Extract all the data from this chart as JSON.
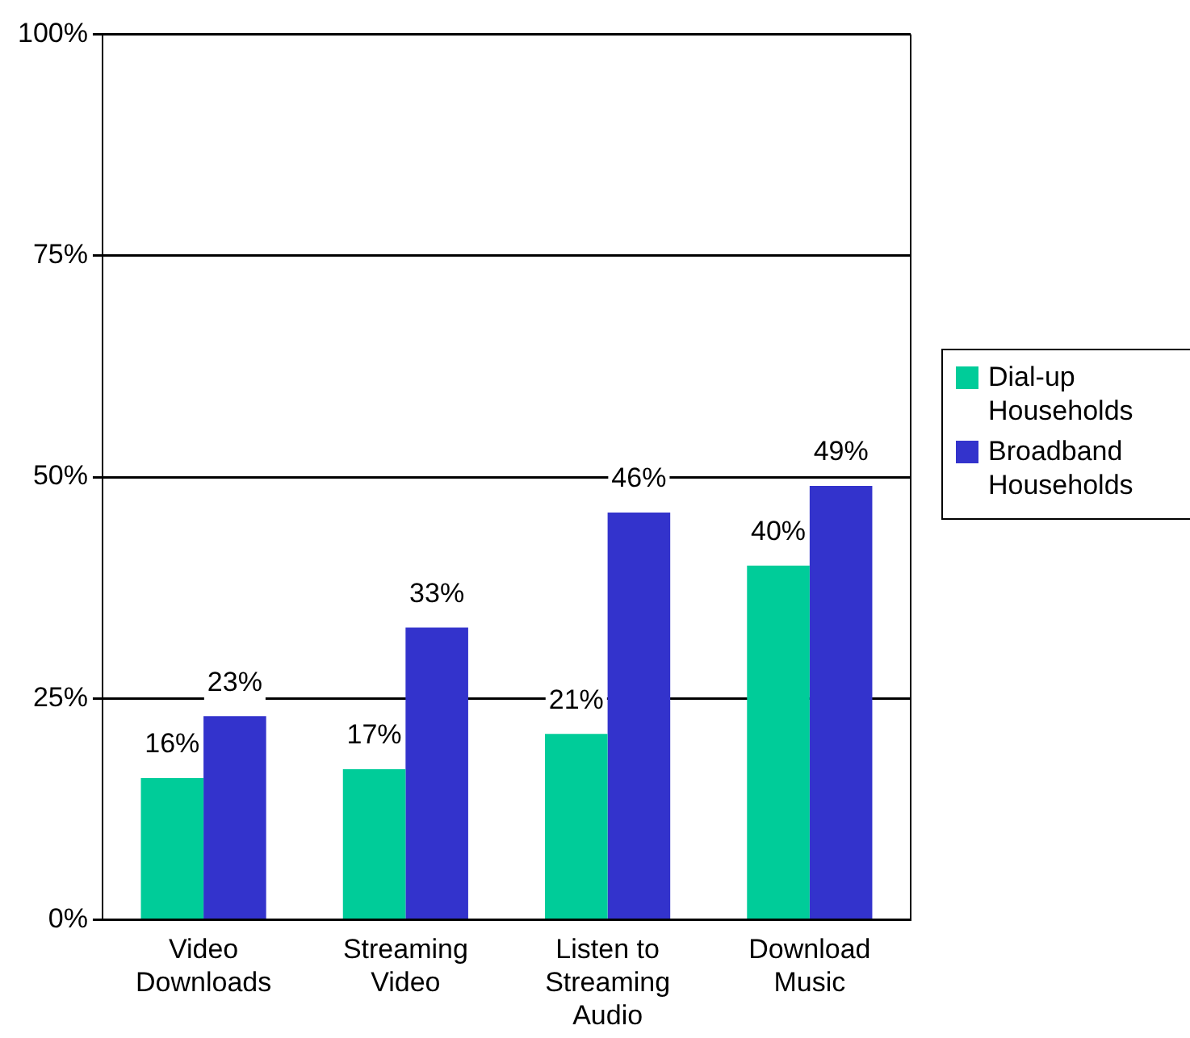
{
  "chart_data": {
    "type": "bar",
    "categories": [
      "Video Downloads",
      "Streaming Video",
      "Listen to Streaming Audio",
      "Download Music"
    ],
    "series": [
      {
        "name": "Dial-up Households",
        "color": "#00cc99",
        "values": [
          16,
          17,
          21,
          40
        ],
        "value_labels": [
          "16%",
          "17%",
          "21%",
          "40%"
        ]
      },
      {
        "name": "Broadband Households",
        "color": "#3333cc",
        "values": [
          23,
          33,
          46,
          49
        ],
        "value_labels": [
          "23%",
          "33%",
          "46%",
          "49%"
        ]
      }
    ],
    "ylim": [
      0,
      100
    ],
    "yticks": [
      {
        "value": 0,
        "label": "0%"
      },
      {
        "value": 25,
        "label": "25%"
      },
      {
        "value": 50,
        "label": "50%"
      },
      {
        "value": 75,
        "label": "75%"
      },
      {
        "value": 100,
        "label": "100%"
      }
    ],
    "grid": "y",
    "legend": "right"
  }
}
